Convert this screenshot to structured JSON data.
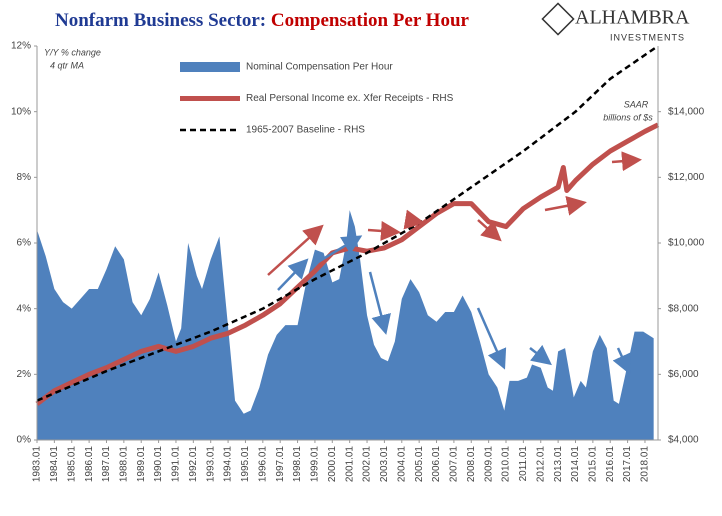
{
  "logo": {
    "name": "ALHAMBRA",
    "tagline": "INVESTMENTS"
  },
  "chart_data": {
    "type": "combo",
    "title": [
      "Nonfarm Business Sector:",
      "Compensation Per Hour"
    ],
    "annotations": [
      "Y/Y % change",
      "4 qtr MA",
      "SAAR",
      "billions of $s"
    ],
    "xlim": [
      1983,
      2018.75
    ],
    "xticks": [
      {
        "value": 1983,
        "label": "1983.01"
      },
      {
        "value": 1984,
        "label": "1984.01"
      },
      {
        "value": 1985,
        "label": "1985.01"
      },
      {
        "value": 1986,
        "label": "1986.01"
      },
      {
        "value": 1987,
        "label": "1987.01"
      },
      {
        "value": 1988,
        "label": "1988.01"
      },
      {
        "value": 1989,
        "label": "1989.01"
      },
      {
        "value": 1990,
        "label": "1990.01"
      },
      {
        "value": 1991,
        "label": "1991.01"
      },
      {
        "value": 1992,
        "label": "1992.01"
      },
      {
        "value": 1993,
        "label": "1993.01"
      },
      {
        "value": 1994,
        "label": "1994.01"
      },
      {
        "value": 1995,
        "label": "1995.01"
      },
      {
        "value": 1996,
        "label": "1996.01"
      },
      {
        "value": 1997,
        "label": "1997.01"
      },
      {
        "value": 1998,
        "label": "1998.01"
      },
      {
        "value": 1999,
        "label": "1999.01"
      },
      {
        "value": 2000,
        "label": "2000.01"
      },
      {
        "value": 2001,
        "label": "2001.01"
      },
      {
        "value": 2002,
        "label": "2002.01"
      },
      {
        "value": 2003,
        "label": "2003.01"
      },
      {
        "value": 2004,
        "label": "2004.01"
      },
      {
        "value": 2005,
        "label": "2005.01"
      },
      {
        "value": 2006,
        "label": "2006.01"
      },
      {
        "value": 2007,
        "label": "2007.01"
      },
      {
        "value": 2008,
        "label": "2008.01"
      },
      {
        "value": 2009,
        "label": "2009.01"
      },
      {
        "value": 2010,
        "label": "2010.01"
      },
      {
        "value": 2011,
        "label": "2011.01"
      },
      {
        "value": 2012,
        "label": "2012.01"
      },
      {
        "value": 2013,
        "label": "2013.01"
      },
      {
        "value": 2014,
        "label": "2014.01"
      },
      {
        "value": 2015,
        "label": "2015.01"
      },
      {
        "value": 2016,
        "label": "2016.01"
      },
      {
        "value": 2017,
        "label": "2017.01"
      },
      {
        "value": 2018,
        "label": "2018.01"
      }
    ],
    "ylim": [
      0,
      12
    ],
    "yticks": [
      {
        "value": 0,
        "label": "0%"
      },
      {
        "value": 2,
        "label": "2%"
      },
      {
        "value": 4,
        "label": "4%"
      },
      {
        "value": 6,
        "label": "6%"
      },
      {
        "value": 8,
        "label": "8%"
      },
      {
        "value": 10,
        "label": "10%"
      },
      {
        "value": 12,
        "label": "12%"
      }
    ],
    "y2lim": [
      4000,
      16000
    ],
    "y2ticks": [
      {
        "value": 4000,
        "label": "$4,000"
      },
      {
        "value": 6000,
        "label": "$6,000"
      },
      {
        "value": 8000,
        "label": "$8,000"
      },
      {
        "value": 10000,
        "label": "$10,000"
      },
      {
        "value": 12000,
        "label": "$12,000"
      },
      {
        "value": 14000,
        "label": "$14,000"
      }
    ],
    "series": [
      {
        "name": "Nominal Compensation Per Hour",
        "type": "area",
        "color": "#4f81bd",
        "x": [
          1983,
          1983.5,
          1984,
          1984.5,
          1985,
          1985.5,
          1986,
          1986.5,
          1987,
          1987.5,
          1988,
          1988.5,
          1989,
          1989.5,
          1990,
          1990.5,
          1991,
          1991.3,
          1991.7,
          1992.2,
          1992.5,
          1993,
          1993.5,
          1993.9,
          1994.4,
          1994.9,
          1995.3,
          1995.8,
          1996.3,
          1996.8,
          1997.3,
          1998,
          1998.5,
          1999,
          1999.5,
          2000,
          2000.4,
          2000.8,
          2001,
          2001.3,
          2001.6,
          2002,
          2002.4,
          2002.8,
          2003.2,
          2003.6,
          2004,
          2004.5,
          2005,
          2005.5,
          2006,
          2006.5,
          2007,
          2007.5,
          2008,
          2008.5,
          2009,
          2009.5,
          2009.9,
          2010.2,
          2010.7,
          2011.2,
          2011.5,
          2012,
          2012.4,
          2012.7,
          2013,
          2013.4,
          2013.9,
          2014.3,
          2014.6,
          2015,
          2015.4,
          2015.8,
          2016.2,
          2016.5,
          2017,
          2017.4,
          2017.9,
          2018.5
        ],
        "values": [
          6.4,
          5.6,
          4.6,
          4.2,
          4.0,
          4.3,
          4.6,
          4.6,
          5.2,
          5.9,
          5.5,
          4.2,
          3.8,
          4.3,
          5.1,
          4.1,
          3.0,
          3.4,
          6.0,
          5.0,
          4.6,
          5.5,
          6.2,
          4.0,
          1.2,
          0.8,
          0.9,
          1.6,
          2.6,
          3.2,
          3.5,
          3.5,
          4.8,
          5.8,
          5.7,
          4.8,
          4.9,
          6.0,
          7.0,
          6.5,
          5.5,
          3.8,
          2.9,
          2.5,
          2.4,
          3.0,
          4.3,
          4.9,
          4.5,
          3.8,
          3.6,
          3.9,
          3.9,
          4.4,
          3.9,
          3.0,
          2.0,
          1.6,
          0.9,
          1.8,
          1.8,
          1.9,
          2.3,
          2.2,
          1.6,
          1.5,
          2.7,
          2.8,
          1.3,
          1.8,
          1.6,
          2.7,
          3.2,
          2.8,
          1.2,
          1.1,
          2.3,
          3.3,
          3.3,
          3.1
        ]
      },
      {
        "name": "Real Personal Income ex. Xfer Receipts - RHS",
        "type": "line",
        "axis": "y2",
        "color": "#c0504d",
        "x": [
          1983,
          1984,
          1985,
          1986,
          1987,
          1988,
          1989,
          1990,
          1991,
          1992,
          1993,
          1994,
          1995,
          1996,
          1997,
          1998,
          1999,
          2000,
          2001,
          2002,
          2003,
          2004,
          2005,
          2006,
          2007,
          2008,
          2009,
          2010,
          2011,
          2012,
          2013,
          2013.3,
          2013.5,
          2014,
          2015,
          2016,
          2017,
          2018,
          2018.75
        ],
        "values": [
          5100,
          5500,
          5750,
          6000,
          6200,
          6450,
          6700,
          6850,
          6700,
          6850,
          7100,
          7250,
          7500,
          7800,
          8150,
          8650,
          9150,
          9700,
          9850,
          9750,
          9850,
          10100,
          10500,
          10900,
          11200,
          11200,
          10650,
          10500,
          11050,
          11400,
          11700,
          12300,
          11600,
          11900,
          12400,
          12800,
          13100,
          13400,
          13600
        ]
      },
      {
        "name": "1965-2007 Baseline - RHS",
        "type": "line",
        "axis": "y2",
        "color": "#000000",
        "dashed": true,
        "x": [
          1983,
          1985,
          1987,
          1990,
          1993,
          1996,
          1999,
          2002,
          2005,
          2008,
          2011,
          2014,
          2016,
          2018.75
        ],
        "values": [
          5200,
          5650,
          6100,
          6700,
          7300,
          8000,
          8900,
          9700,
          10600,
          11700,
          12800,
          14000,
          15000,
          16000
        ]
      }
    ]
  }
}
